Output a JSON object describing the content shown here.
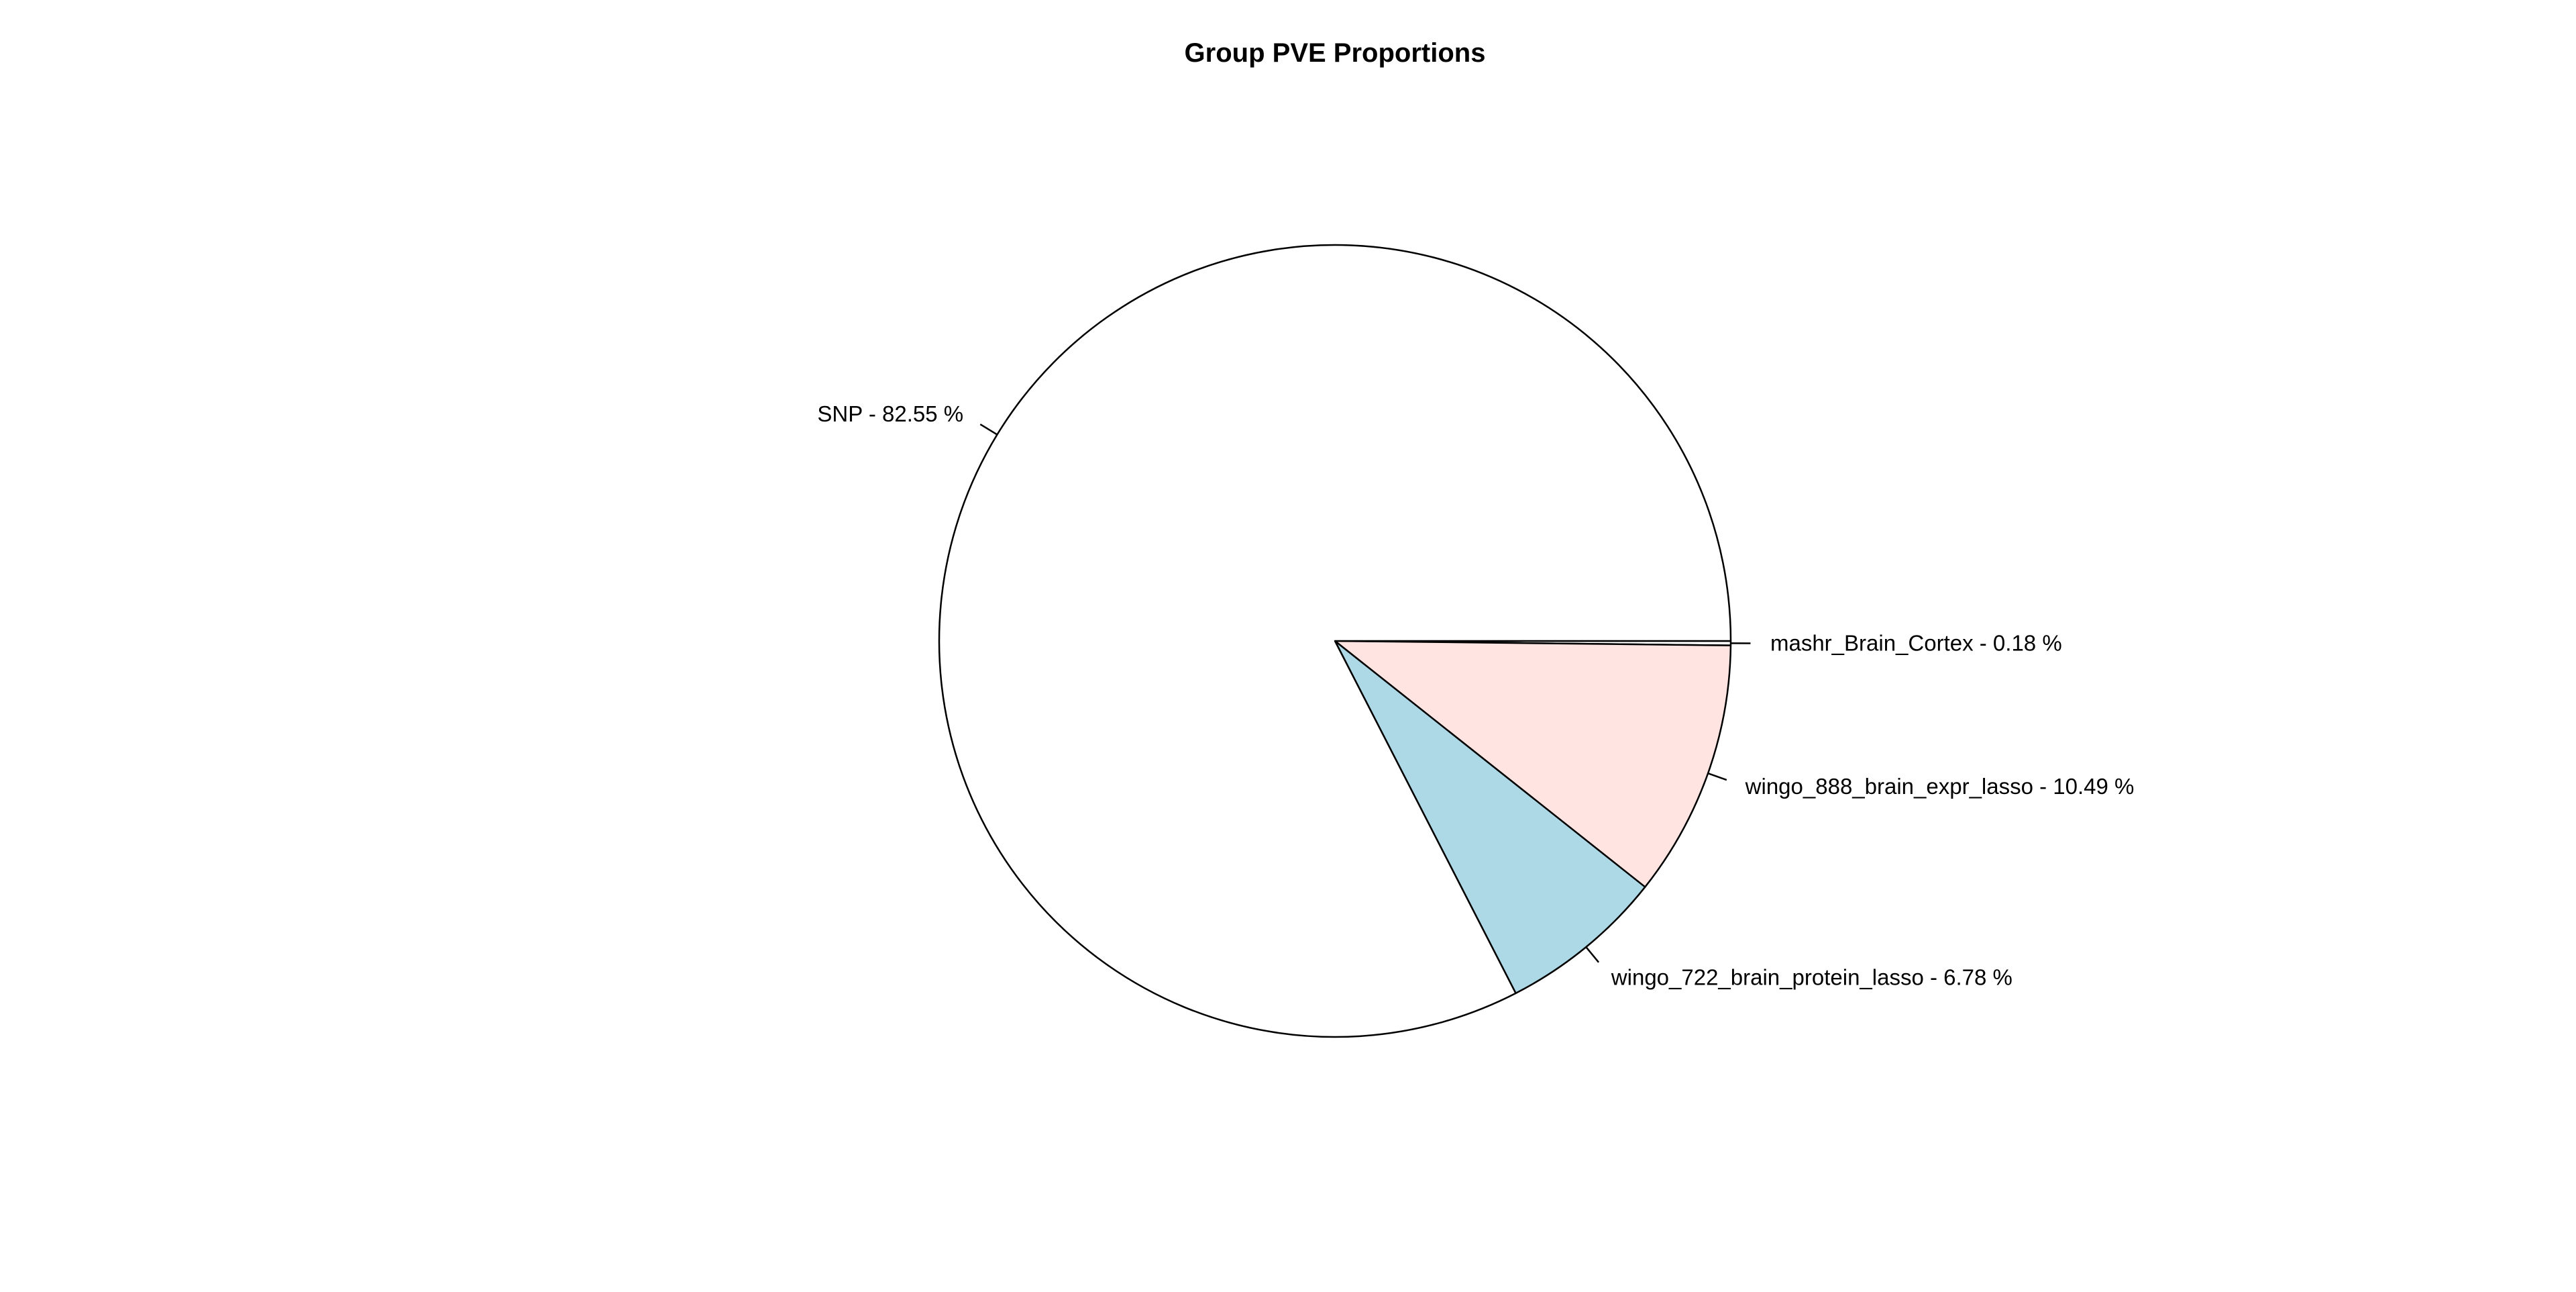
{
  "chart_data": {
    "type": "pie",
    "title": "Group PVE Proportions",
    "slices": [
      {
        "name": "mashr_Brain_Cortex",
        "label": "mashr_Brain_Cortex - 0.18 %",
        "value": 0.18,
        "color": "#FFFFFF"
      },
      {
        "name": "wingo_888_brain_expr_lasso",
        "label": "wingo_888_brain_expr_lasso - 10.49 %",
        "value": 10.49,
        "color": "#FFE4E1"
      },
      {
        "name": "wingo_722_brain_protein_lasso",
        "label": "wingo_722_brain_protein_lasso - 6.78 %",
        "value": 6.78,
        "color": "#ADD8E6"
      },
      {
        "name": "SNP",
        "label": "SNP - 82.55 %",
        "value": 82.55,
        "color": "#FFFFFF"
      }
    ],
    "direction": "clockwise",
    "start": "3 o'clock",
    "border_color": "#000000",
    "legend": "none"
  }
}
